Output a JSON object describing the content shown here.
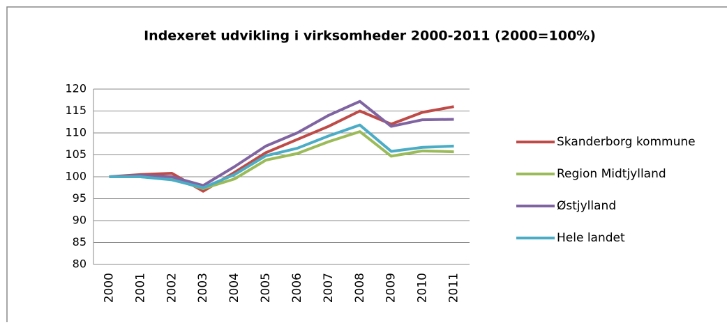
{
  "chart_data": {
    "type": "line",
    "title": "Indexeret udvikling i virksomheder 2000-2011 (2000=100%)",
    "categories": [
      "2000",
      "2001",
      "2002",
      "2003",
      "2004",
      "2005",
      "2006",
      "2007",
      "2008",
      "2009",
      "2010",
      "2011"
    ],
    "series": [
      {
        "name": "Skanderborg kommune",
        "color": "#be4b48",
        "values": [
          100,
          100.5,
          100.8,
          96.7,
          101,
          105.5,
          108.5,
          111.5,
          115,
          112,
          114.7,
          116
        ]
      },
      {
        "name": "Region Midtjylland",
        "color": "#9bbb59",
        "values": [
          100,
          100,
          99.5,
          97.3,
          99.5,
          103.8,
          105.3,
          108,
          110.3,
          104.7,
          105.9,
          105.7
        ]
      },
      {
        "name": "Østjylland",
        "color": "#8064a2",
        "values": [
          100,
          100.3,
          100,
          98,
          102.3,
          107,
          110,
          114,
          117.2,
          111.5,
          113,
          113.1
        ]
      },
      {
        "name": "Hele landet",
        "color": "#4bacc6",
        "values": [
          100,
          100,
          99.3,
          97.5,
          100.5,
          104.8,
          106.5,
          109.3,
          111.8,
          105.8,
          106.7,
          107
        ]
      }
    ],
    "ylim": [
      80,
      120
    ],
    "yticks": [
      80,
      85,
      90,
      95,
      100,
      105,
      110,
      115,
      120
    ],
    "grid": true,
    "legend": "right"
  }
}
